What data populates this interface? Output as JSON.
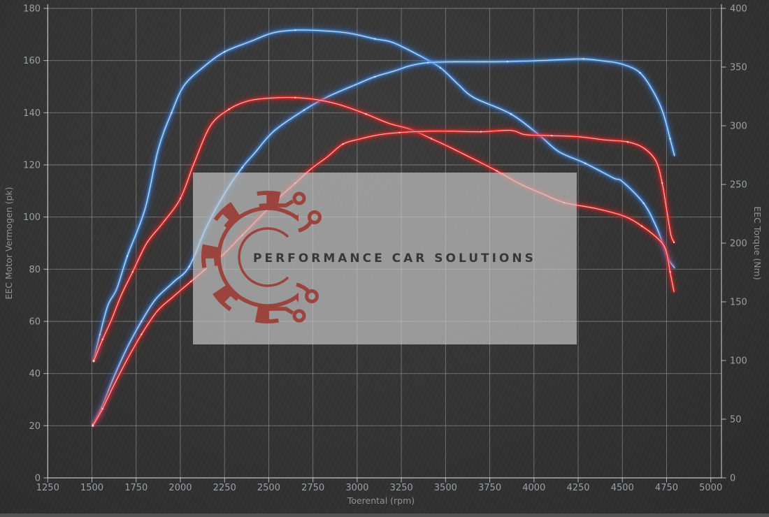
{
  "watermark": {
    "text": "PERFORMANCE CAR SOLUTIONS"
  },
  "colors": {
    "background": "#343434",
    "grid": "rgba(205,210,212,0.42)",
    "axis": "rgba(225,228,230,0.75)",
    "axis_text": "#9aa0a3",
    "blue_line": "#4f94e0",
    "blue_glow": "#2f6fd0",
    "blue_core": "#dcecfb",
    "red_line": "#e62e2e",
    "red_glow": "#c81f1f",
    "red_core": "#ffd9d9",
    "watermark_box": "rgba(200,200,200,0.68)",
    "logo_red": "#9c3f39",
    "logo_text": "#2e2e2e",
    "bottom_bar": "#595959"
  },
  "chart_data": {
    "type": "line",
    "title": "",
    "xlabel": "Toerental (rpm)",
    "ylabel_left": "EEC Motor Vermogen (pk)",
    "ylabel_right": "EEC Torque (Nm)",
    "x_range": [
      1250,
      5000
    ],
    "y_left_range": [
      0,
      180
    ],
    "y_right_range": [
      0,
      400
    ],
    "x_ticks": [
      1250,
      1500,
      1750,
      2000,
      2250,
      2500,
      2750,
      3000,
      3250,
      3500,
      3750,
      4000,
      4250,
      4500,
      4750,
      5000
    ],
    "y_left_ticks": [
      0,
      20,
      40,
      60,
      80,
      100,
      120,
      140,
      160,
      180
    ],
    "y_right_ticks": [
      0,
      50,
      100,
      150,
      200,
      250,
      300,
      350,
      400
    ],
    "grid": true,
    "legend": "none",
    "series": [
      {
        "id": "torque-blue-tuned",
        "axis": "right",
        "unit": "Nm",
        "color_key": "blue",
        "points": [
          [
            1510,
            100.5
          ],
          [
            1545,
            122
          ],
          [
            1590,
            147
          ],
          [
            1640,
            161
          ],
          [
            1700,
            189
          ],
          [
            1800,
            229
          ],
          [
            1875,
            280
          ],
          [
            1950,
            311
          ],
          [
            2020,
            334
          ],
          [
            2130,
            350
          ],
          [
            2250,
            363
          ],
          [
            2400,
            372
          ],
          [
            2520,
            379
          ],
          [
            2650,
            381.5
          ],
          [
            2800,
            381
          ],
          [
            2950,
            379
          ],
          [
            3100,
            374
          ],
          [
            3200,
            371
          ],
          [
            3350,
            360
          ],
          [
            3470,
            349.5
          ],
          [
            3570,
            335.5
          ],
          [
            3660,
            324
          ],
          [
            3870,
            310
          ],
          [
            4030,
            292
          ],
          [
            4140,
            278
          ],
          [
            4290,
            268
          ],
          [
            4450,
            255.5
          ],
          [
            4500,
            252.5
          ],
          [
            4620,
            234
          ],
          [
            4690,
            214.5
          ],
          [
            4730,
            199
          ],
          [
            4760,
            186.5
          ],
          [
            4795,
            179
          ]
        ]
      },
      {
        "id": "power-blue-tuned",
        "axis": "left",
        "unit": "pk",
        "color_key": "blue",
        "points": [
          [
            1505,
            20.5
          ],
          [
            1555,
            27
          ],
          [
            1620,
            38
          ],
          [
            1700,
            50
          ],
          [
            1780,
            60
          ],
          [
            1860,
            68.5
          ],
          [
            1960,
            75
          ],
          [
            2050,
            81
          ],
          [
            2150,
            96.5
          ],
          [
            2250,
            109
          ],
          [
            2350,
            119
          ],
          [
            2420,
            124.5
          ],
          [
            2530,
            133
          ],
          [
            2700,
            141
          ],
          [
            2830,
            146
          ],
          [
            3000,
            151
          ],
          [
            3100,
            153.8
          ],
          [
            3210,
            156
          ],
          [
            3300,
            158
          ],
          [
            3400,
            159.2
          ],
          [
            3550,
            159.5
          ],
          [
            3700,
            159.5
          ],
          [
            3850,
            159.6
          ],
          [
            4000,
            159.9
          ],
          [
            4150,
            160.3
          ],
          [
            4280,
            160.6
          ],
          [
            4400,
            159.8
          ],
          [
            4500,
            158.6
          ],
          [
            4600,
            155.3
          ],
          [
            4680,
            147.5
          ],
          [
            4730,
            140
          ],
          [
            4770,
            130
          ],
          [
            4795,
            123.5
          ]
        ]
      },
      {
        "id": "torque-red-original",
        "axis": "right",
        "unit": "Nm",
        "color_key": "red",
        "points": [
          [
            1510,
            99.5
          ],
          [
            1560,
            118
          ],
          [
            1610,
            134.5
          ],
          [
            1665,
            155.5
          ],
          [
            1730,
            175.5
          ],
          [
            1810,
            200
          ],
          [
            1900,
            217
          ],
          [
            2000,
            238
          ],
          [
            2080,
            269
          ],
          [
            2170,
            300
          ],
          [
            2275,
            314
          ],
          [
            2380,
            321
          ],
          [
            2500,
            323.5
          ],
          [
            2650,
            324
          ],
          [
            2780,
            322
          ],
          [
            2900,
            318
          ],
          [
            3050,
            310
          ],
          [
            3180,
            302
          ],
          [
            3300,
            297
          ],
          [
            3420,
            289
          ],
          [
            3520,
            282
          ],
          [
            3680,
            270
          ],
          [
            3790,
            261.5
          ],
          [
            3920,
            250.5
          ],
          [
            4050,
            242
          ],
          [
            4170,
            234.5
          ],
          [
            4350,
            229.5
          ],
          [
            4510,
            223
          ],
          [
            4610,
            214.5
          ],
          [
            4700,
            204
          ],
          [
            4745,
            194.5
          ],
          [
            4770,
            175.5
          ],
          [
            4792,
            158.5
          ]
        ]
      },
      {
        "id": "power-red-original",
        "axis": "left",
        "unit": "pk",
        "color_key": "red",
        "points": [
          [
            1505,
            20
          ],
          [
            1560,
            26.5
          ],
          [
            1620,
            35
          ],
          [
            1700,
            45.5
          ],
          [
            1780,
            55
          ],
          [
            1870,
            64
          ],
          [
            1960,
            69.5
          ],
          [
            2060,
            75.3
          ],
          [
            2160,
            81
          ],
          [
            2240,
            85.5
          ],
          [
            2350,
            93
          ],
          [
            2450,
            100
          ],
          [
            2560,
            107.5
          ],
          [
            2650,
            113
          ],
          [
            2740,
            118.5
          ],
          [
            2830,
            123
          ],
          [
            2920,
            128
          ],
          [
            3020,
            130
          ],
          [
            3120,
            131.5
          ],
          [
            3240,
            132.4
          ],
          [
            3400,
            132.9
          ],
          [
            3550,
            132.9
          ],
          [
            3700,
            132.7
          ],
          [
            3870,
            133.2
          ],
          [
            3950,
            131.6
          ],
          [
            4100,
            131.2
          ],
          [
            4250,
            130.8
          ],
          [
            4400,
            129.6
          ],
          [
            4530,
            128.8
          ],
          [
            4620,
            126.5
          ],
          [
            4690,
            121.5
          ],
          [
            4725,
            113
          ],
          [
            4755,
            101
          ],
          [
            4775,
            93
          ],
          [
            4792,
            90.3
          ]
        ]
      }
    ]
  }
}
